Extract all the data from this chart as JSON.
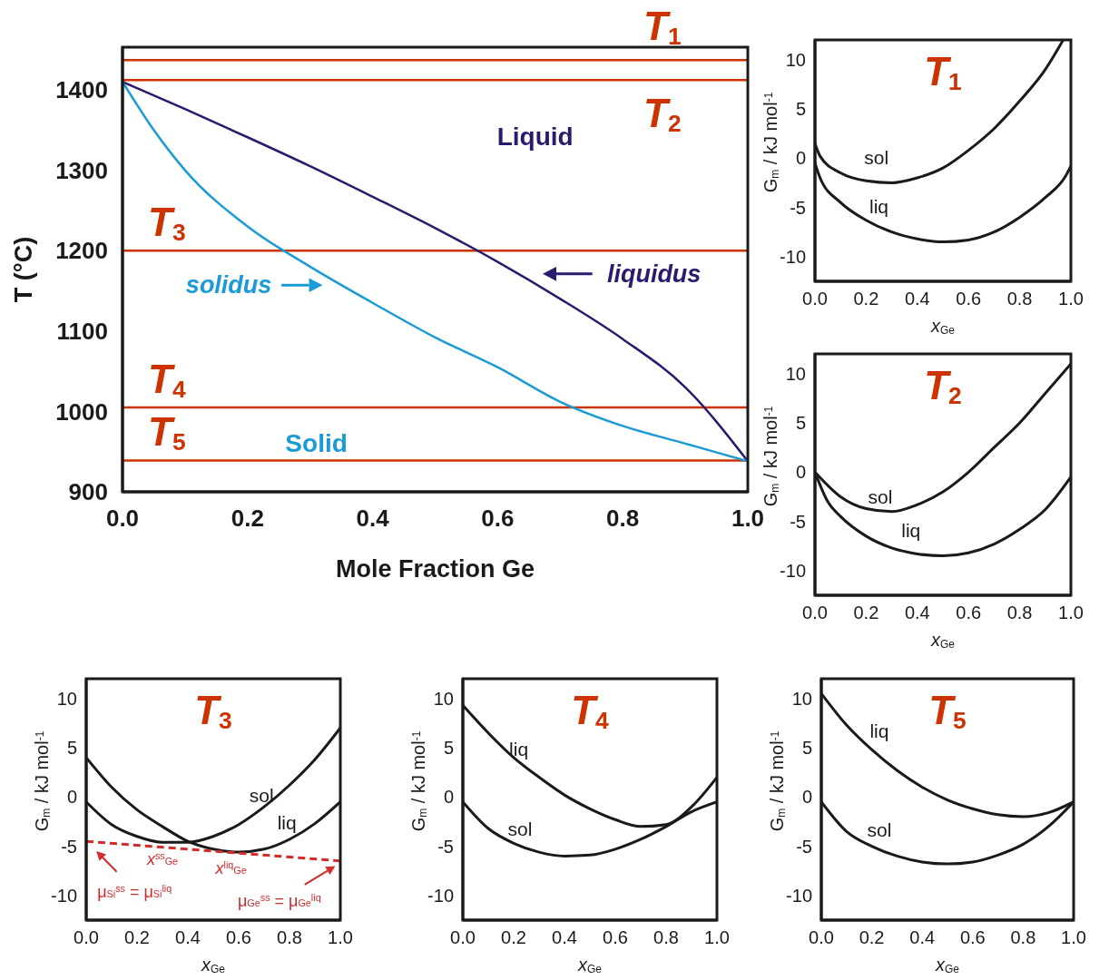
{
  "chart_data": [
    {
      "type": "line",
      "xlabel": "Mole Fraction Ge",
      "ylabel": "T (°C)",
      "xlim": [
        0,
        1
      ],
      "ylim": [
        900,
        1453
      ],
      "xticks": [
        {
          "value": 0,
          "label": "0.0"
        },
        {
          "value": 0.2,
          "label": "0.2"
        },
        {
          "value": 0.4,
          "label": "0.4"
        },
        {
          "value": 0.6,
          "label": "0.6"
        },
        {
          "value": 0.8,
          "label": "0.8"
        },
        {
          "value": 1,
          "label": "1.0"
        }
      ],
      "yticks": [
        900,
        1000,
        1100,
        1200,
        1300,
        1400
      ],
      "series": [
        {
          "name": "liquidus",
          "color": "#2b1a6e",
          "x": [
            0,
            0.1,
            0.2,
            0.3,
            0.4,
            0.5,
            0.6,
            0.7,
            0.8,
            0.9,
            1
          ],
          "values": [
            1410,
            1376,
            1341,
            1305,
            1267,
            1228,
            1186,
            1140,
            1090,
            1030,
            938
          ]
        },
        {
          "name": "solidus",
          "color": "#1a9ad6",
          "x": [
            0,
            0.05,
            0.1,
            0.2,
            0.3,
            0.4,
            0.5,
            0.6,
            0.7,
            0.8,
            0.9,
            1
          ],
          "values": [
            1410,
            1350,
            1300,
            1230,
            1180,
            1135,
            1092,
            1055,
            1012,
            982,
            960,
            938
          ]
        }
      ],
      "ref_lines": [
        {
          "axis": "y",
          "value": 1437,
          "label": "T$_{1}$",
          "color": "#cc3300"
        },
        {
          "axis": "y",
          "value": 1412,
          "label": "T$_{2}$",
          "color": "#cc3300"
        },
        {
          "axis": "y",
          "value": 1200,
          "label": "T$_{3}$",
          "color": "#cc3300"
        },
        {
          "axis": "y",
          "value": 1005,
          "label": "T$_{4}$",
          "color": "#cc3300"
        },
        {
          "axis": "y",
          "value": 939,
          "label": "T$_{5}$",
          "color": "#cc3300"
        }
      ],
      "annotations": [
        "Liquid",
        "Solid"
      ]
    },
    {
      "type": "line",
      "title": "T$_{1}$",
      "xlabel": "x$_{Ge}$",
      "ylabel": "G$_{m}$ / kJ mol$^{-1}$",
      "xlim": [
        0,
        1
      ],
      "ylim": [
        -12.5,
        12
      ],
      "xticks": [
        {
          "value": 0,
          "label": "0.0"
        },
        {
          "value": 0.2,
          "label": "0.2"
        },
        {
          "value": 0.4,
          "label": "0.4"
        },
        {
          "value": 0.6,
          "label": "0.6"
        },
        {
          "value": 0.8,
          "label": "0.8"
        },
        {
          "value": 1,
          "label": "1.0"
        }
      ],
      "yticks": [
        -10,
        -5,
        0,
        5,
        10
      ],
      "series": [
        {
          "name": "sol",
          "color": "#1a1a1a",
          "x": [
            0,
            0.02,
            0.1,
            0.2,
            0.3,
            0.4,
            0.5,
            0.6,
            0.7,
            0.8,
            0.9,
            0.97
          ],
          "values": [
            1.5,
            0.2,
            -1.5,
            -2.3,
            -2.5,
            -2,
            -1,
            0.8,
            3,
            5.8,
            9,
            12
          ]
        },
        {
          "name": "liq",
          "color": "#1a1a1a",
          "x": [
            0,
            0.02,
            0.1,
            0.2,
            0.3,
            0.4,
            0.5,
            0.6,
            0.7,
            0.8,
            0.9,
            0.98,
            1
          ],
          "values": [
            -0.5,
            -2,
            -4.5,
            -6.3,
            -7.5,
            -8.2,
            -8.5,
            -8.3,
            -7.5,
            -6,
            -4,
            -1.8,
            -0.8
          ]
        }
      ]
    },
    {
      "type": "line",
      "title": "T$_{2}$",
      "xlabel": "x$_{Ge}$",
      "ylabel": "G$_{m}$ / kJ mol$^{-1}$",
      "xlim": [
        0,
        1
      ],
      "ylim": [
        -12.5,
        12
      ],
      "xticks": [
        {
          "value": 0,
          "label": "0.0"
        },
        {
          "value": 0.2,
          "label": "0.2"
        },
        {
          "value": 0.4,
          "label": "0.4"
        },
        {
          "value": 0.6,
          "label": "0.6"
        },
        {
          "value": 0.8,
          "label": "0.8"
        },
        {
          "value": 1,
          "label": "1.0"
        }
      ],
      "yticks": [
        -10,
        -5,
        0,
        5,
        10
      ],
      "series": [
        {
          "name": "sol",
          "color": "#1a1a1a",
          "x": [
            0,
            0.1,
            0.2,
            0.3,
            0.4,
            0.5,
            0.6,
            0.7,
            0.8,
            0.9,
            1
          ],
          "values": [
            0,
            -2.5,
            -3.7,
            -4,
            -3.3,
            -2,
            0,
            2.5,
            5,
            8,
            11
          ]
        },
        {
          "name": "liq",
          "color": "#1a1a1a",
          "x": [
            0,
            0.05,
            0.1,
            0.2,
            0.3,
            0.4,
            0.5,
            0.6,
            0.7,
            0.8,
            0.9,
            1
          ],
          "values": [
            0,
            -3,
            -4.5,
            -6.5,
            -7.7,
            -8.3,
            -8.5,
            -8.2,
            -7.3,
            -5.8,
            -3.8,
            -0.5
          ]
        }
      ]
    },
    {
      "type": "line",
      "title": "T$_{3}$",
      "xlabel": "x$_{Ge}$",
      "ylabel": "G$_{m}$ / kJ mol$^{-1}$",
      "xlim": [
        0,
        1
      ],
      "ylim": [
        -12.5,
        12
      ],
      "xticks": [
        {
          "value": 0,
          "label": "0.0"
        },
        {
          "value": 0.2,
          "label": "0.2"
        },
        {
          "value": 0.4,
          "label": "0.4"
        },
        {
          "value": 0.6,
          "label": "0.6"
        },
        {
          "value": 0.8,
          "label": "0.8"
        },
        {
          "value": 1,
          "label": "1.0"
        }
      ],
      "yticks": [
        -10,
        -5,
        0,
        5,
        10
      ],
      "x": [
        0,
        0.1,
        0.2,
        0.3,
        0.4,
        0.5,
        0.6,
        0.7,
        0.8,
        0.9,
        1
      ],
      "series": [
        {
          "name": "sol",
          "color": "#1a1a1a",
          "values": [
            -0.5,
            -2.8,
            -4,
            -4.6,
            -4.6,
            -4,
            -2.8,
            -1,
            1.2,
            3.8,
            7
          ]
        },
        {
          "name": "liq",
          "color": "#1a1a1a",
          "values": [
            4,
            1,
            -1.3,
            -3,
            -4.5,
            -5.3,
            -5.6,
            -5.3,
            -4.3,
            -2.7,
            -0.5
          ]
        },
        {
          "color": "#d42a2a",
          "line_style": "dashed",
          "x": [
            0,
            1
          ],
          "values": [
            -4.5,
            -6.5
          ]
        }
      ],
      "annotations": [
        "x$^{ss}$$_{Ge}$",
        "x$^{liq}$$_{Ge}$",
        "μ$_{Si}$$^{ss}$ = μ$_{Si}$$^{liq}$",
        "μ$_{Ge}$$^{ss}$ = μ$_{Ge}$$^{liq}$"
      ]
    },
    {
      "type": "line",
      "title": "T$_{4}$",
      "xlabel": "x$_{Ge}$",
      "ylabel": "G$_{m}$ / kJ mol$^{-1}$",
      "xlim": [
        0,
        1
      ],
      "ylim": [
        -12.5,
        12
      ],
      "xticks": [
        {
          "value": 0,
          "label": "0.0"
        },
        {
          "value": 0.2,
          "label": "0.2"
        },
        {
          "value": 0.4,
          "label": "0.4"
        },
        {
          "value": 0.6,
          "label": "0.6"
        },
        {
          "value": 0.8,
          "label": "0.8"
        },
        {
          "value": 1,
          "label": "1.0"
        }
      ],
      "yticks": [
        -10,
        -5,
        0,
        5,
        10
      ],
      "x": [
        0,
        0.1,
        0.2,
        0.3,
        0.4,
        0.5,
        0.6,
        0.7,
        0.8,
        0.9,
        1
      ],
      "series": [
        {
          "name": "sol",
          "color": "#1a1a1a",
          "values": [
            -0.5,
            -3.2,
            -4.7,
            -5.6,
            -6,
            -5.9,
            -5.3,
            -4.3,
            -3,
            -1.5,
            -0.5
          ]
        },
        {
          "name": "liq",
          "color": "#1a1a1a",
          "values": [
            9.3,
            6.5,
            4,
            2,
            0.2,
            -1.2,
            -2.3,
            -3,
            -2.8,
            -1,
            2
          ]
        }
      ]
    },
    {
      "type": "line",
      "title": "T$_{5}$",
      "xlabel": "x$_{Ge}$",
      "ylabel": "G$_{m}$ / kJ mol$^{-1}$",
      "xlim": [
        0,
        1
      ],
      "ylim": [
        -12.5,
        12
      ],
      "xticks": [
        {
          "value": 0,
          "label": "0.0"
        },
        {
          "value": 0.2,
          "label": "0.2"
        },
        {
          "value": 0.4,
          "label": "0.4"
        },
        {
          "value": 0.6,
          "label": "0.6"
        },
        {
          "value": 0.8,
          "label": "0.8"
        },
        {
          "value": 1,
          "label": "1.0"
        }
      ],
      "yticks": [
        -10,
        -5,
        0,
        5,
        10
      ],
      "x": [
        0,
        0.1,
        0.2,
        0.3,
        0.4,
        0.5,
        0.6,
        0.7,
        0.8,
        0.9,
        1
      ],
      "series": [
        {
          "name": "sol",
          "color": "#1a1a1a",
          "values": [
            -0.5,
            -3.5,
            -5,
            -6,
            -6.6,
            -6.8,
            -6.6,
            -5.9,
            -4.8,
            -3,
            -0.5
          ]
        },
        {
          "name": "liq",
          "color": "#1a1a1a",
          "values": [
            10.5,
            7.3,
            4.8,
            2.7,
            1,
            -0.3,
            -1.2,
            -1.8,
            -2,
            -1.6,
            -0.5
          ]
        }
      ]
    }
  ]
}
